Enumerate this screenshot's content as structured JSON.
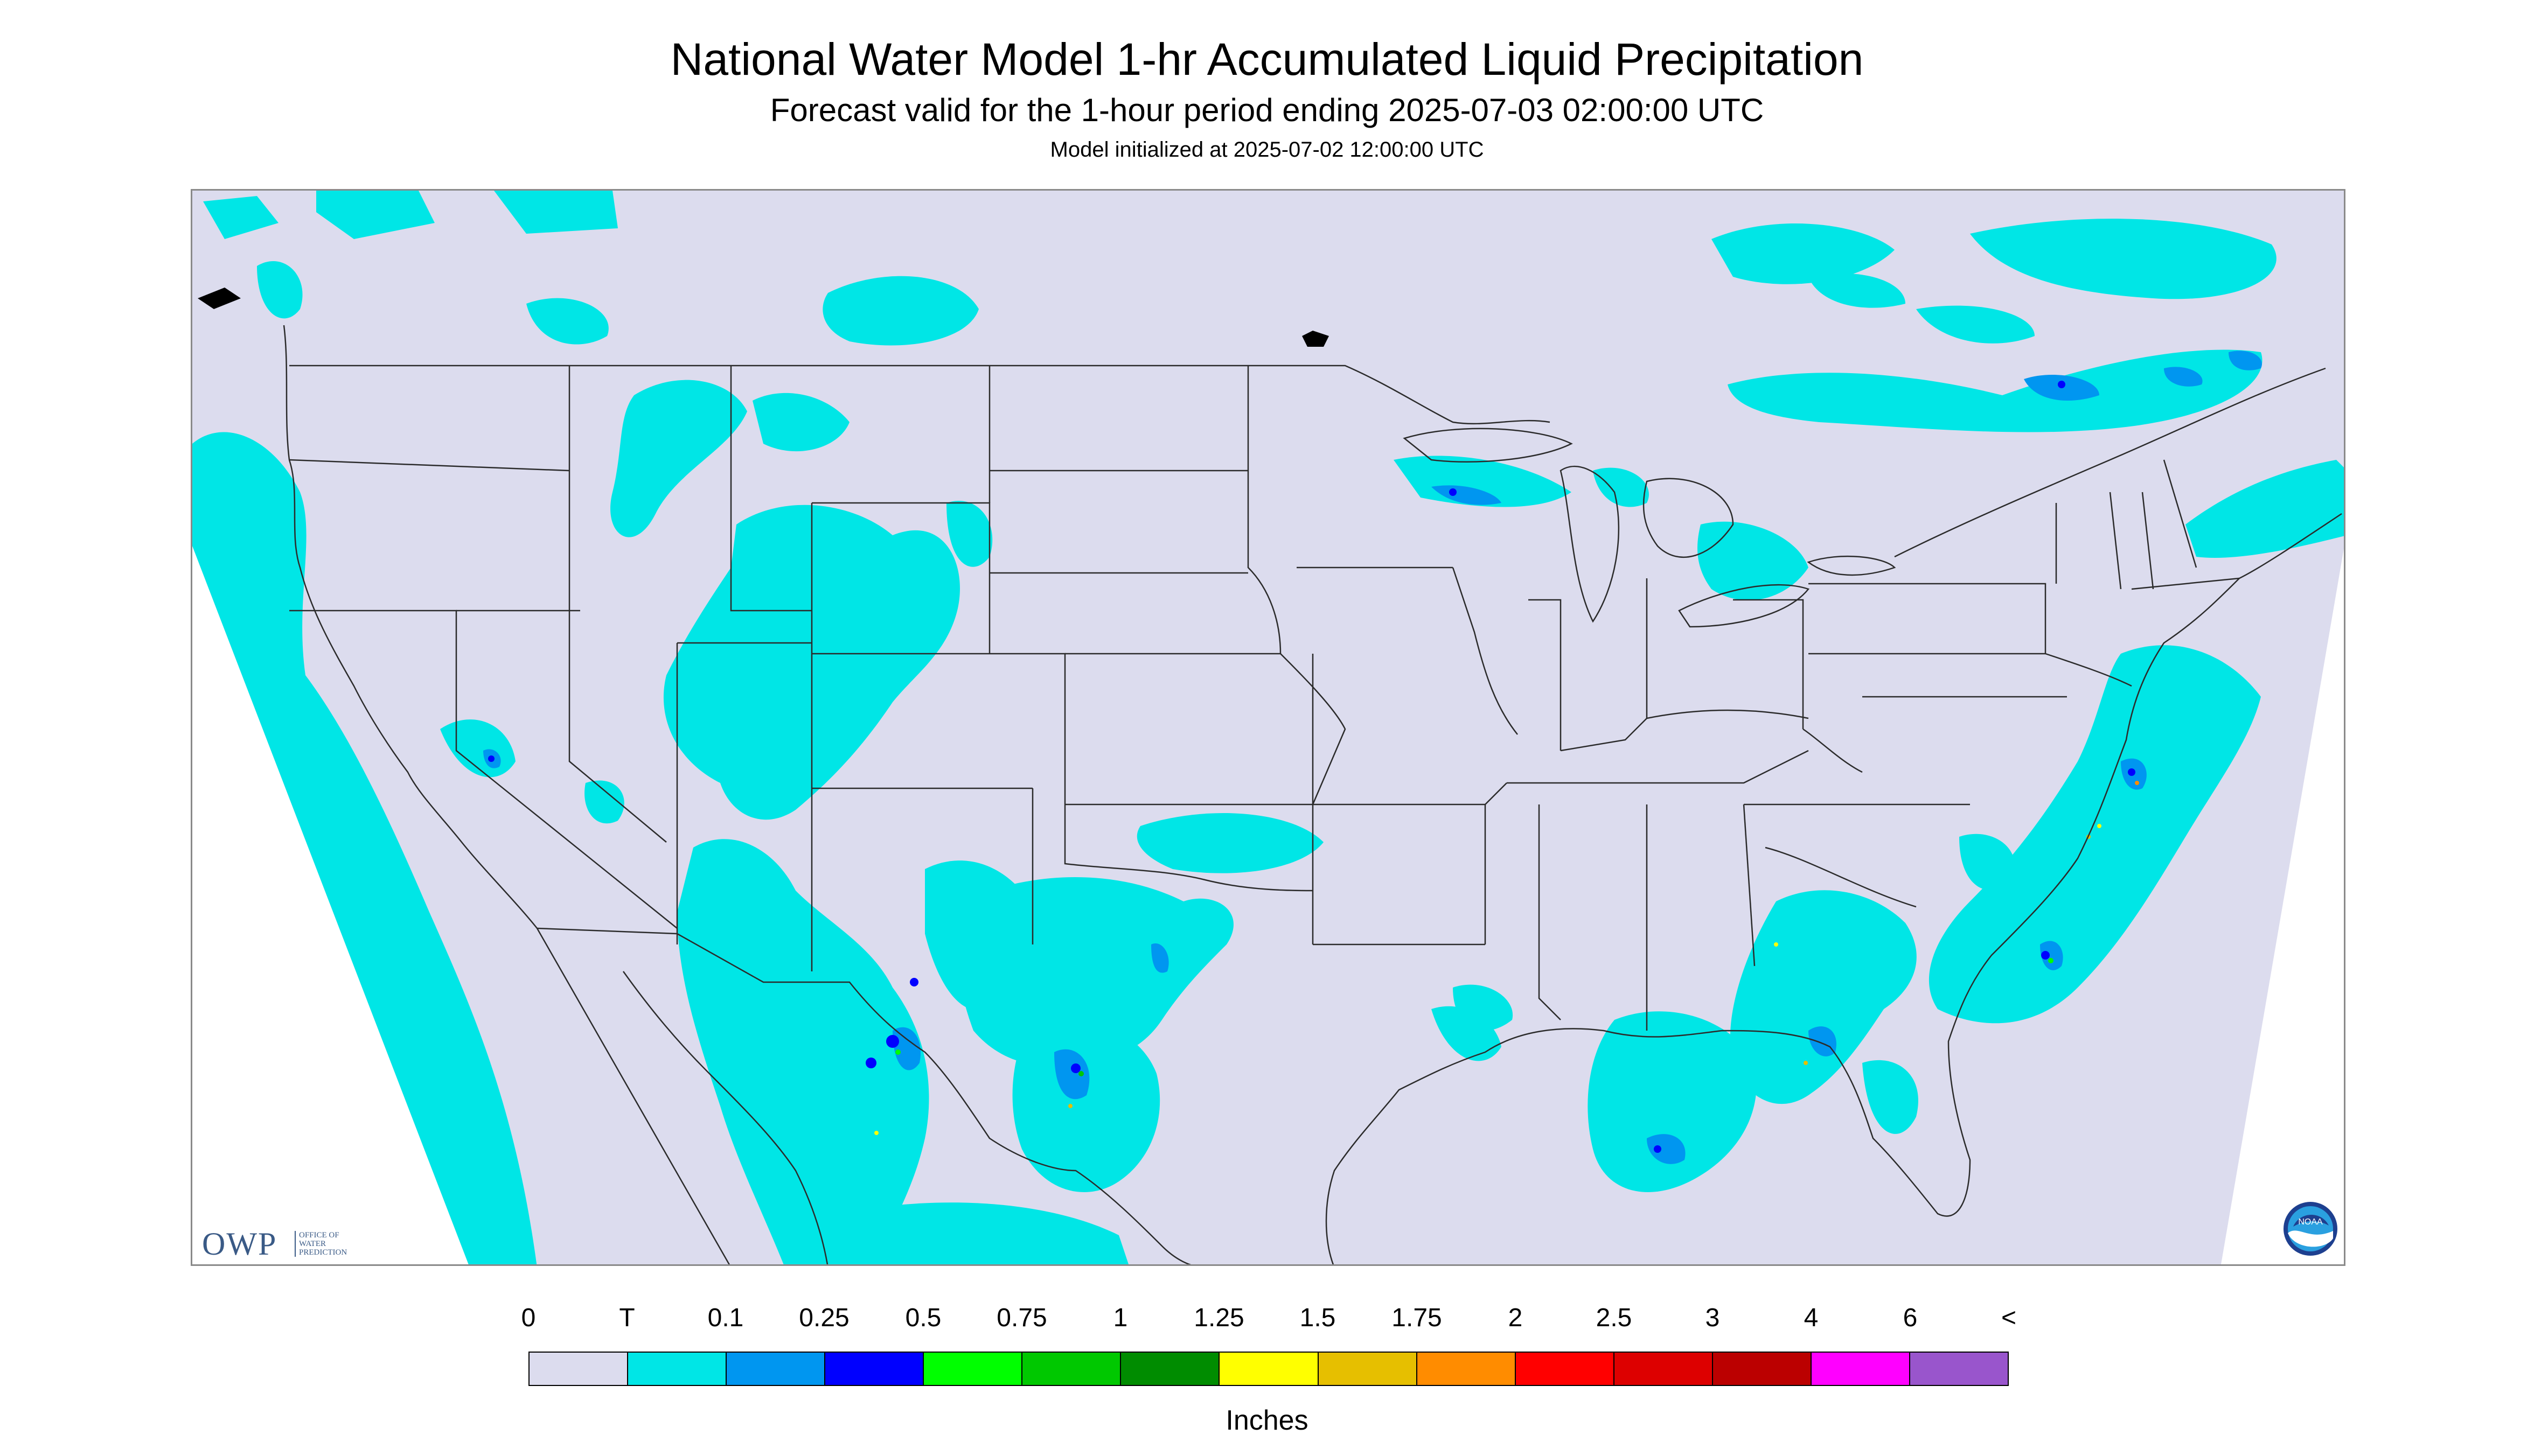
{
  "header": {
    "title": "National Water Model 1-hr Accumulated Liquid Precipitation",
    "subtitle": "Forecast valid for the 1-hour period ending 2025-07-03 02:00:00 UTC",
    "init": "Model initialized at 2025-07-02 12:00:00 UTC"
  },
  "map": {
    "background_color": "#dcdcee",
    "outside_color": "#ffffff",
    "boundary_color": "#2b2b2b"
  },
  "logos": {
    "owp_letters": "OWP",
    "owp_text": "OFFICE OF WATER PREDICTION",
    "noaa_text": "NOAA"
  },
  "legend": {
    "labels": [
      "0",
      "T",
      "0.1",
      "0.25",
      "0.5",
      "0.75",
      "1",
      "1.25",
      "1.5",
      "1.75",
      "2",
      "2.5",
      "3",
      "4",
      "6",
      "<"
    ],
    "colors": [
      "#dcdcee",
      "#00e6e6",
      "#0096f0",
      "#0000ff",
      "#00ff00",
      "#00c800",
      "#008c00",
      "#ffff00",
      "#e6bf00",
      "#ff8c00",
      "#ff0000",
      "#dd0000",
      "#bb0000",
      "#ff00ff",
      "#9955cc"
    ],
    "units": "Inches"
  }
}
